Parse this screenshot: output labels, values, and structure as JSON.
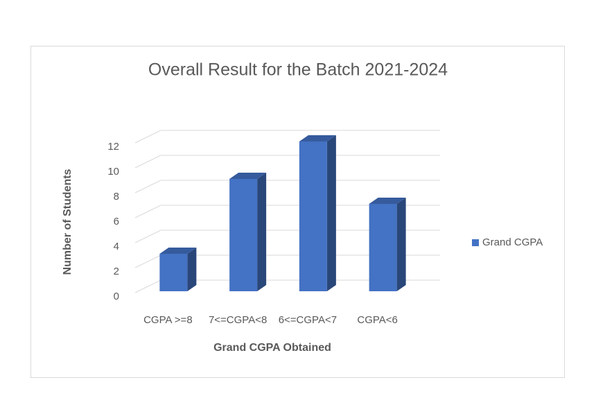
{
  "chart_data": {
    "type": "bar3d",
    "title": "Overall Result for the Batch 2021-2024",
    "x_label": "Grand CGPA Obtained",
    "y_label": "Number of Students",
    "categories": [
      "CGPA >=8",
      "7<=CGPA<8",
      "6<=CGPA<7",
      "CGPA<6"
    ],
    "series": [
      {
        "name": "Grand CGPA",
        "color": "#4472c4",
        "values": [
          3,
          9,
          12,
          7
        ]
      }
    ],
    "ylim": [
      0,
      12
    ],
    "yticks": [
      0,
      2,
      4,
      6,
      8,
      10,
      12
    ],
    "grid": true,
    "legend": "right"
  }
}
